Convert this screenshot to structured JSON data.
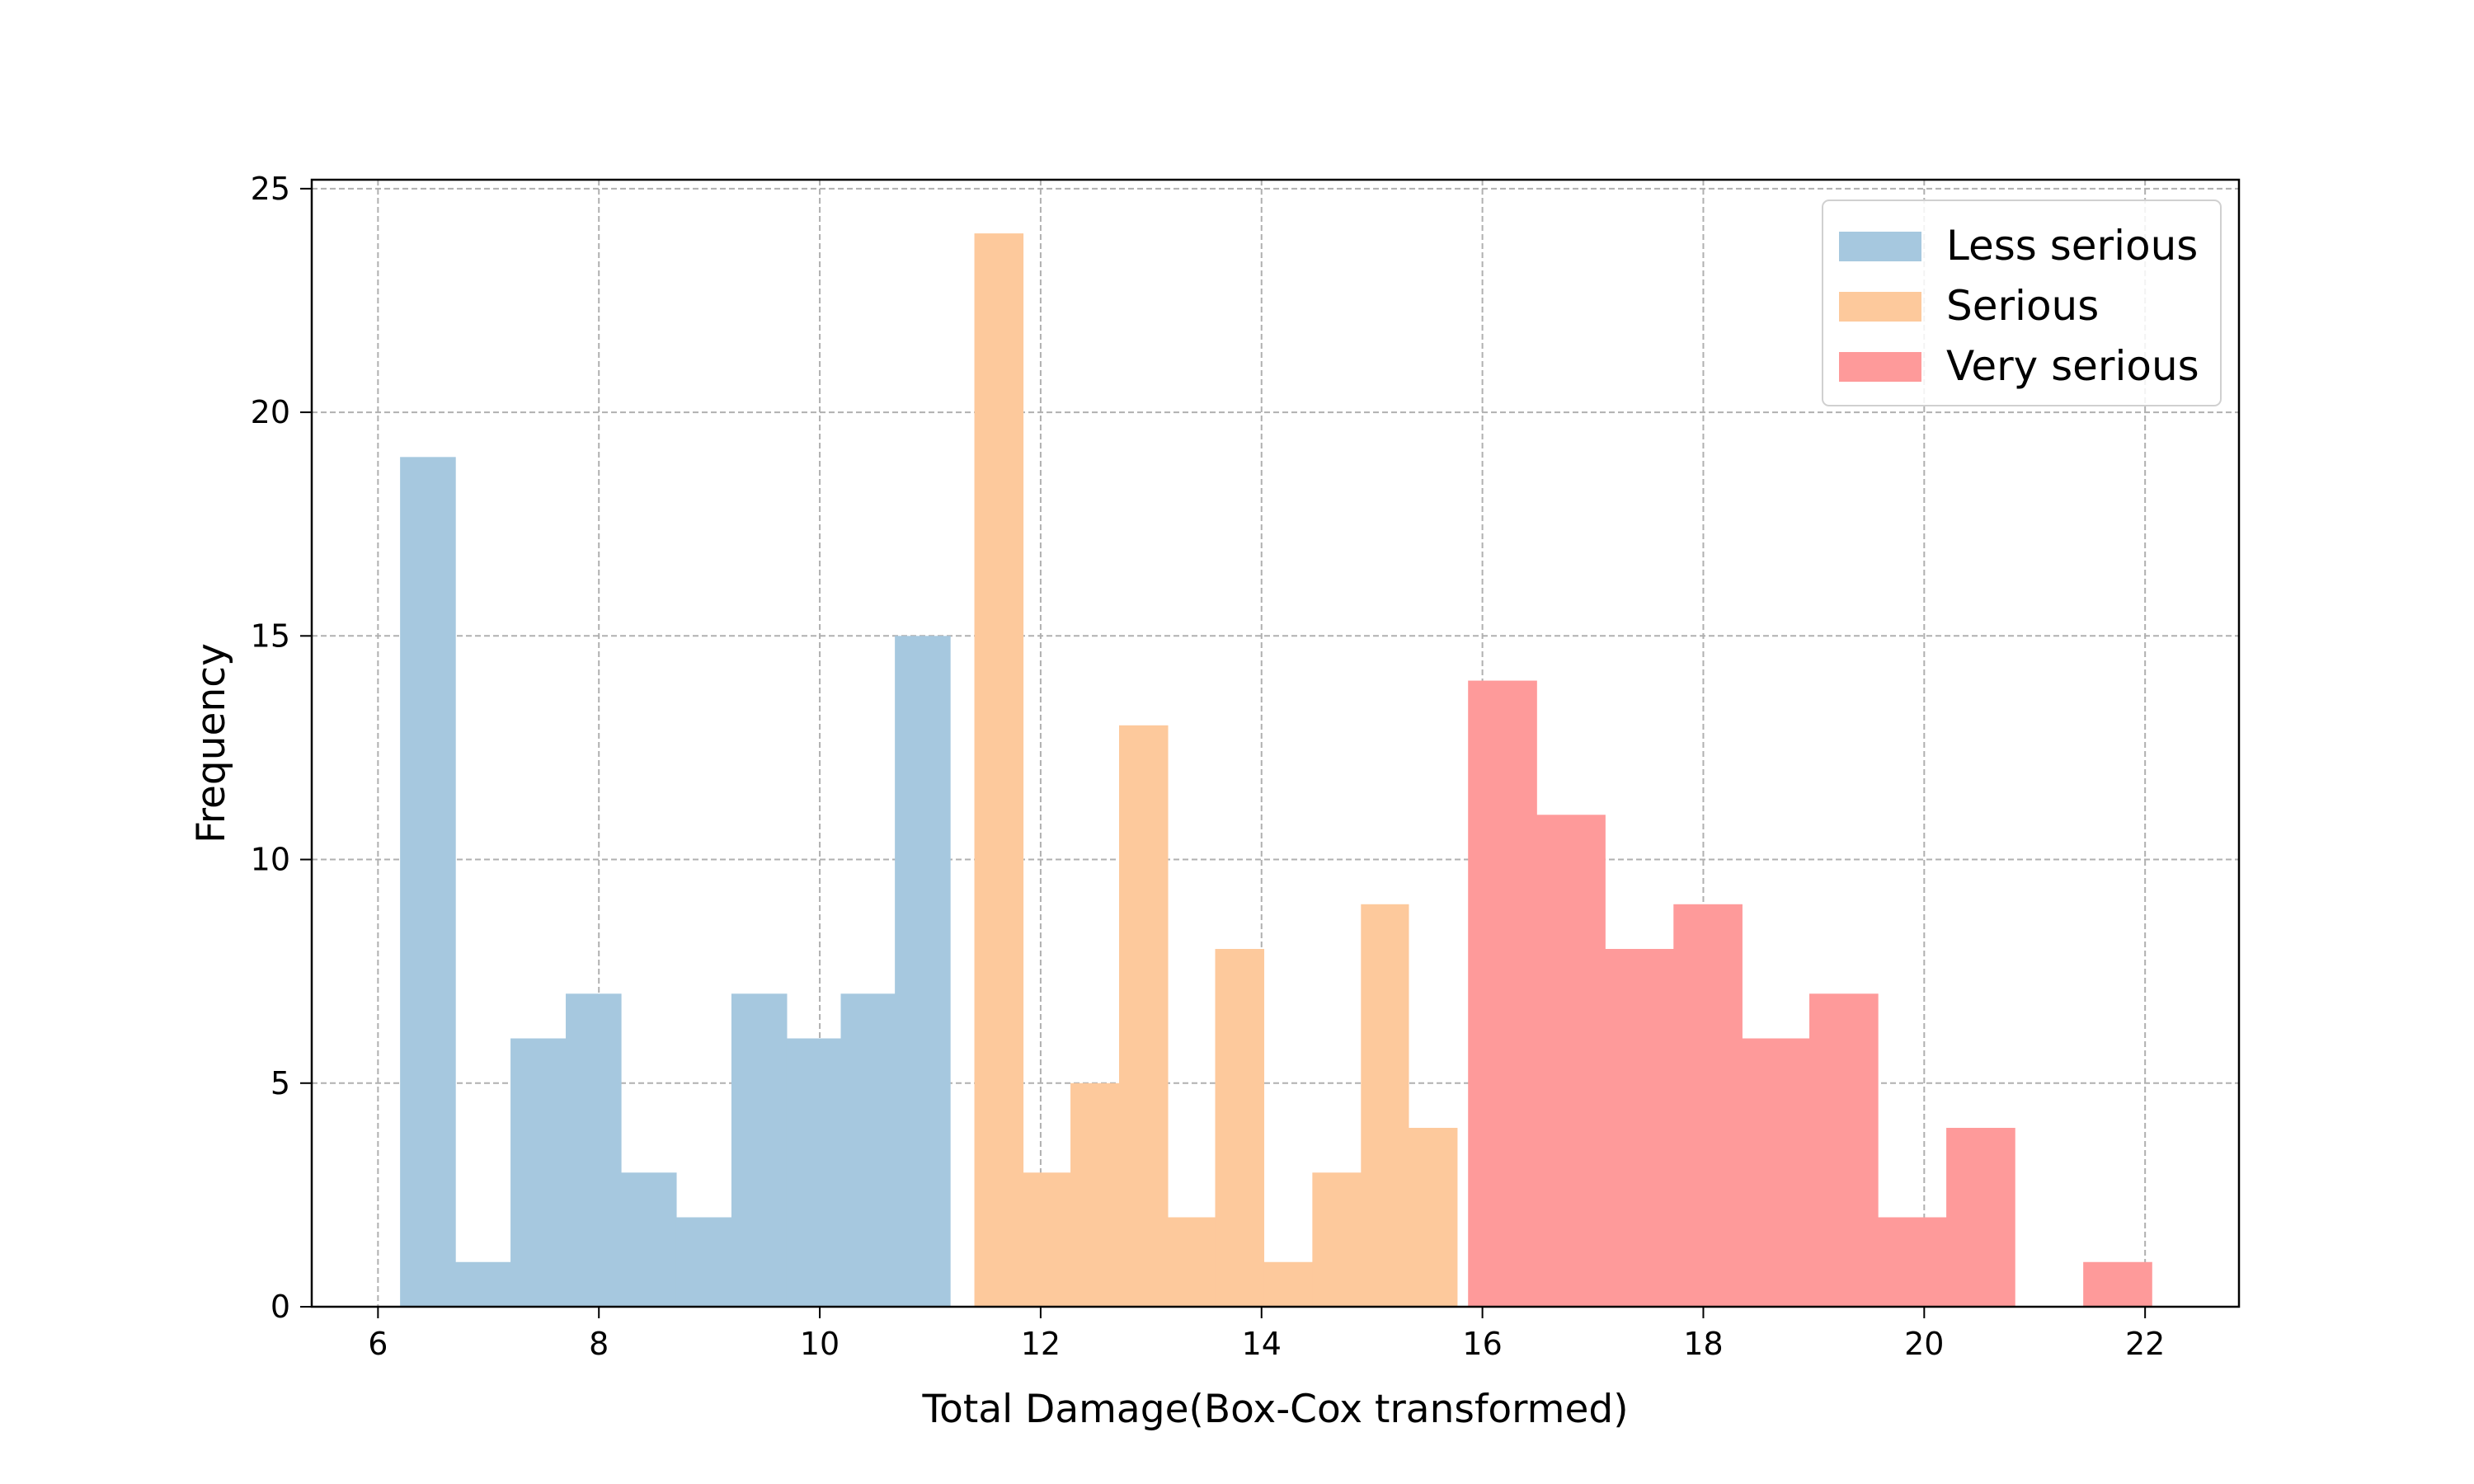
{
  "chart_data": {
    "type": "bar",
    "title": "",
    "xlabel": "Total Damage(Box-Cox transformed)",
    "ylabel": "Frequency",
    "xlim": [
      5.4,
      22.85
    ],
    "ylim": [
      0,
      25.2
    ],
    "xticks": [
      "6",
      "8",
      "10",
      "12",
      "14",
      "16",
      "18",
      "20",
      "22"
    ],
    "yticks": [
      "0",
      "5",
      "10",
      "15",
      "20",
      "25"
    ],
    "grid": true,
    "legend_position": "top-right",
    "series": [
      {
        "name": "Less serious",
        "color": "#a6c8df",
        "bins": [
          {
            "x0": 6.2,
            "x1": 6.7,
            "value": 19
          },
          {
            "x0": 6.7,
            "x1": 7.2,
            "value": 1
          },
          {
            "x0": 7.2,
            "x1": 7.7,
            "value": 6
          },
          {
            "x0": 7.7,
            "x1": 8.2,
            "value": 7
          },
          {
            "x0": 8.2,
            "x1": 8.7,
            "value": 3
          },
          {
            "x0": 8.7,
            "x1": 9.2,
            "value": 2
          },
          {
            "x0": 9.2,
            "x1": 9.7,
            "value": 7
          },
          {
            "x0": 9.7,
            "x1": 10.19,
            "value": 6
          },
          {
            "x0": 10.19,
            "x1": 10.68,
            "value": 7
          },
          {
            "x0": 10.68,
            "x1": 11.18,
            "value": 15
          }
        ]
      },
      {
        "name": "Serious",
        "color": "#fdc99c",
        "bins": [
          {
            "x0": 11.4,
            "x1": 11.84,
            "value": 24
          },
          {
            "x0": 11.84,
            "x1": 12.27,
            "value": 3
          },
          {
            "x0": 12.27,
            "x1": 12.71,
            "value": 5
          },
          {
            "x0": 12.71,
            "x1": 13.15,
            "value": 13
          },
          {
            "x0": 13.15,
            "x1": 13.58,
            "value": 2
          },
          {
            "x0": 13.58,
            "x1": 14.02,
            "value": 8
          },
          {
            "x0": 14.02,
            "x1": 14.46,
            "value": 1
          },
          {
            "x0": 14.46,
            "x1": 14.9,
            "value": 3
          },
          {
            "x0": 14.9,
            "x1": 15.33,
            "value": 9
          },
          {
            "x0": 15.33,
            "x1": 15.77,
            "value": 4
          }
        ]
      },
      {
        "name": "Very serious",
        "color": "#fe9a9a",
        "bins": [
          {
            "x0": 15.87,
            "x1": 16.49,
            "value": 14
          },
          {
            "x0": 16.49,
            "x1": 17.11,
            "value": 11
          },
          {
            "x0": 17.11,
            "x1": 17.73,
            "value": 8
          },
          {
            "x0": 17.73,
            "x1": 18.35,
            "value": 9
          },
          {
            "x0": 18.35,
            "x1": 18.96,
            "value": 6
          },
          {
            "x0": 18.96,
            "x1": 19.58,
            "value": 7
          },
          {
            "x0": 19.58,
            "x1": 20.2,
            "value": 2
          },
          {
            "x0": 20.2,
            "x1": 20.82,
            "value": 4
          },
          {
            "x0": 20.82,
            "x1": 21.44,
            "value": 0
          },
          {
            "x0": 21.44,
            "x1": 22.06,
            "value": 1
          }
        ]
      }
    ]
  }
}
